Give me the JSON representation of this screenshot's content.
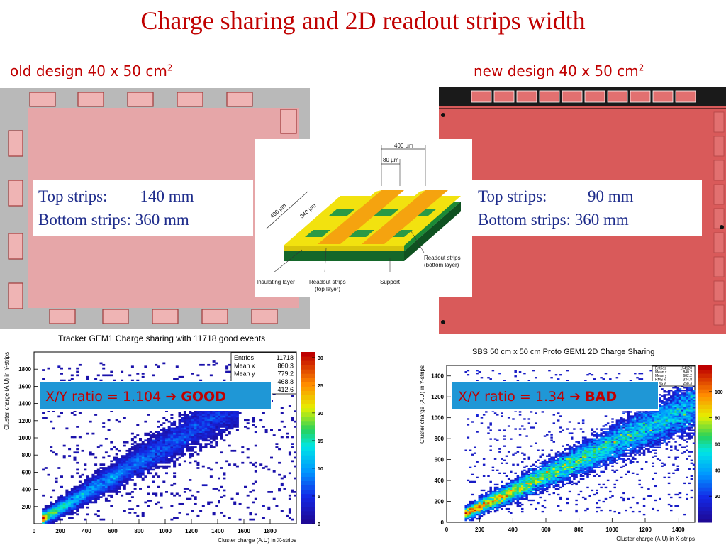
{
  "slide": {
    "title": "Charge sharing and 2D readout strips width",
    "old_design": {
      "label": "old design 40 x 50 cm",
      "sup": "2"
    },
    "new_design": {
      "label": "new design 40 x 50 cm",
      "sup": "2"
    },
    "old_strips": {
      "top_label": "Top strips:",
      "top_value": "140 mm",
      "bottom_label": "Bottom strips:",
      "bottom_value": "360 mm"
    },
    "new_strips": {
      "top_label": "Top strips:",
      "top_value": "90 mm",
      "bottom_label": "Bottom strips:",
      "bottom_value": "360 mm"
    },
    "diagram": {
      "dim_400_top": "400 µm",
      "dim_80": "80 µm",
      "dim_400_left": "400 µm",
      "dim_340": "340 µm",
      "label_readout_bottom_1": "Readout strips",
      "label_readout_bottom_2": "(bottom layer)",
      "label_insulating": "Insulating layer",
      "label_readout_top_1": "Readout strips",
      "label_readout_top_2": "(top layer)",
      "label_support": "Support"
    },
    "colors": {
      "title_red": "#c00000",
      "textbox_blue": "#1f2d8c",
      "ratio_box": "#1f97d6",
      "old_board": "#e6a6a8",
      "new_board": "#d95a5a"
    }
  },
  "chart_data": [
    {
      "type": "heatmap",
      "title": "Tracker GEM1 Charge sharing with 11718 good events",
      "xlabel": "Cluster charge (A.U) in X-strips",
      "ylabel": "Cluster charge (A.U) in Y-strips",
      "xlim": [
        0,
        2000
      ],
      "ylim": [
        0,
        2000
      ],
      "xticks": [
        "0",
        "200",
        "400",
        "600",
        "800",
        "1000",
        "1200",
        "1400",
        "1600",
        "1800"
      ],
      "yticks": [
        "200",
        "400",
        "600",
        "800",
        "1000",
        "1200",
        "1400",
        "1600",
        "1800"
      ],
      "zticks": [
        "0",
        "5",
        "10",
        "15",
        "20",
        "25",
        "30"
      ],
      "zlim": [
        0,
        31
      ],
      "ratio_slope": 1.104,
      "ratio_text": "X/Y ratio = 1.104",
      "ratio_verdict": "GOOD",
      "stats": {
        "labels": [
          "Entries",
          "Mean x",
          "Mean y",
          "",
          ""
        ],
        "values": [
          "11718",
          "860.3",
          "779.2",
          "468.8",
          "412.6"
        ]
      }
    },
    {
      "type": "heatmap",
      "title": "SBS 50 cm x 50 cm Proto GEM1 2D Charge Sharing",
      "xlabel": "Cluster charge (A.U) in X-strips",
      "ylabel": "Cluster charge (A.U) in Y-strips",
      "xlim": [
        0,
        1500
      ],
      "ylim": [
        0,
        1500
      ],
      "xticks": [
        "0",
        "200",
        "400",
        "600",
        "800",
        "1000",
        "1200",
        "1400"
      ],
      "yticks": [
        "0",
        "200",
        "400",
        "600",
        "800",
        "1000",
        "1200",
        "1400"
      ],
      "zticks": [
        "20",
        "40",
        "60",
        "80",
        "100"
      ],
      "zlim": [
        0,
        120
      ],
      "ratio_slope": 1.34,
      "ratio_text": "X/Y ratio = 1.34",
      "ratio_verdict": "BAD",
      "stats": {
        "labels": [
          "Entries",
          "Mean x",
          "Mean y",
          "RMS x",
          "RMS y"
        ],
        "values": [
          "154120",
          "840.2",
          "682.2",
          "334.8",
          "258.3"
        ]
      }
    }
  ]
}
